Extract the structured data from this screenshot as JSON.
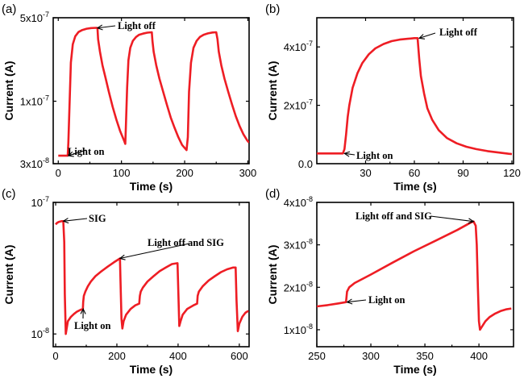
{
  "chart_data": [
    {
      "type": "line",
      "panel_label": "(a)",
      "xlabel": "Time (s)",
      "ylabel": "Current (A)",
      "xlim": [
        -8,
        302
      ],
      "ylim": [
        3e-08,
        5e-07
      ],
      "yscale": "log",
      "xticks": [
        {
          "v": 0,
          "label": "0"
        },
        {
          "v": 100,
          "label": "100"
        },
        {
          "v": 200,
          "label": "200"
        },
        {
          "v": 300,
          "label": "300"
        }
      ],
      "yticks": [
        {
          "v": 3e-08,
          "label": "3x10",
          "exp": "-8"
        },
        {
          "v": 1e-07,
          "label": "1x10",
          "exp": "-7"
        },
        {
          "v": 5e-07,
          "label": "5x10",
          "exp": "-7"
        }
      ],
      "series": [
        {
          "color": "#ee1d24",
          "x": [
            0,
            15,
            16,
            18,
            20,
            23,
            27,
            32,
            38,
            45,
            52,
            60,
            62,
            63,
            66,
            70,
            75,
            80,
            86,
            92,
            98,
            104,
            106,
            107,
            109,
            111,
            114,
            118,
            123,
            128,
            134,
            141,
            148,
            149,
            151,
            155,
            160,
            166,
            172,
            178,
            184,
            190,
            196,
            203,
            205,
            207,
            210,
            214,
            219,
            224,
            230,
            237,
            244,
            250,
            252,
            254,
            258,
            263,
            269,
            275,
            281,
            287,
            293,
            299,
            302
          ],
          "y": [
            3.5e-08,
            3.5e-08,
            4.5e-08,
            1e-07,
            2.1e-07,
            3e-07,
            3.5e-07,
            3.8e-07,
            3.95e-07,
            4.05e-07,
            4.1e-07,
            4.12e-07,
            4.1e-07,
            3.3e-07,
            2.6e-07,
            2e-07,
            1.55e-07,
            1.2e-07,
            9e-08,
            7e-08,
            5.6e-08,
            4.7e-08,
            4.4e-08,
            6e-08,
            1.3e-07,
            2.2e-07,
            2.8e-07,
            3.2e-07,
            3.45e-07,
            3.6e-07,
            3.68e-07,
            3.75e-07,
            3.78e-07,
            3.2e-07,
            2.6e-07,
            2e-07,
            1.55e-07,
            1.2e-07,
            9.3e-08,
            7.3e-08,
            6e-08,
            5e-08,
            4.3e-08,
            3.9e-08,
            5e-08,
            1.2e-07,
            2.1e-07,
            2.8e-07,
            3.2e-07,
            3.45e-07,
            3.6e-07,
            3.7e-07,
            3.76e-07,
            3.78e-07,
            3.3e-07,
            2.6e-07,
            2e-07,
            1.55e-07,
            1.2e-07,
            9.4e-08,
            7.5e-08,
            6.2e-08,
            5.3e-08,
            4.7e-08,
            4.5e-08
          ]
        }
      ],
      "annotations": [
        {
          "text": "Light off",
          "x": 62,
          "y": 4.1e-07
        },
        {
          "text": "Light on",
          "x": 16,
          "y": 3.5e-08
        }
      ]
    },
    {
      "type": "line",
      "panel_label": "(b)",
      "xlabel": "Time (s)",
      "ylabel": "Current (A)",
      "xlim": [
        0,
        121
      ],
      "ylim": [
        0,
        5e-07
      ],
      "yscale": "linear",
      "xticks": [
        {
          "v": 30,
          "label": "30"
        },
        {
          "v": 60,
          "label": "60"
        },
        {
          "v": 90,
          "label": "90"
        },
        {
          "v": 120,
          "label": "120"
        }
      ],
      "yticks": [
        {
          "v": 0,
          "label": "0.0",
          "exp": ""
        },
        {
          "v": 2e-07,
          "label": "2x10",
          "exp": "-7"
        },
        {
          "v": 4e-07,
          "label": "4x10",
          "exp": "-7"
        }
      ],
      "series": [
        {
          "color": "#ee1d24",
          "x": [
            0,
            16,
            17,
            18,
            19,
            20,
            22,
            25,
            28,
            32,
            36,
            41,
            46,
            51,
            56,
            60,
            62,
            63,
            64,
            66,
            68,
            71,
            75,
            80,
            86,
            92,
            98,
            105,
            112,
            118,
            120
          ],
          "y": [
            3.5e-08,
            3.5e-08,
            5e-08,
            1e-07,
            1.6e-07,
            2e-07,
            2.6e-07,
            3.1e-07,
            3.45e-07,
            3.75e-07,
            3.95e-07,
            4.1e-07,
            4.2e-07,
            4.25e-07,
            4.28e-07,
            4.3e-07,
            4.3e-07,
            3.6e-07,
            3e-07,
            2.4e-07,
            1.9e-07,
            1.5e-07,
            1.15e-07,
            8.8e-08,
            7e-08,
            5.8e-08,
            5e-08,
            4.3e-08,
            3.8e-08,
            3.4e-08,
            3.3e-08
          ]
        }
      ],
      "annotations": [
        {
          "text": "Light off",
          "x": 63,
          "y": 4.3e-07
        },
        {
          "text": "Light on",
          "x": 17,
          "y": 3.5e-08
        }
      ]
    },
    {
      "type": "line",
      "panel_label": "(c)",
      "xlabel": "Time (s)",
      "ylabel": "Current (A)",
      "xlim": [
        -8,
        632
      ],
      "ylim": [
        8e-09,
        1e-07
      ],
      "yscale": "log",
      "xticks": [
        {
          "v": 0,
          "label": "0"
        },
        {
          "v": 200,
          "label": "200"
        },
        {
          "v": 400,
          "label": "400"
        },
        {
          "v": 600,
          "label": "600"
        }
      ],
      "yticks": [
        {
          "v": 1e-08,
          "label": "10",
          "exp": "-8"
        },
        {
          "v": 1e-07,
          "label": "10",
          "exp": "-7"
        }
      ],
      "series": [
        {
          "color": "#ee1d24",
          "x": [
            0,
            5,
            10,
            20,
            25,
            28,
            30,
            33,
            36,
            40,
            50,
            60,
            70,
            80,
            89,
            90,
            92,
            97,
            105,
            115,
            130,
            150,
            170,
            190,
            210,
            212,
            215,
            218,
            222,
            230,
            245,
            260,
            273,
            275,
            278,
            285,
            300,
            320,
            340,
            360,
            380,
            398,
            401,
            404,
            408,
            415,
            430,
            450,
            462,
            464,
            468,
            480,
            500,
            520,
            540,
            560,
            580,
            588,
            591,
            595,
            600,
            610,
            620,
            630
          ],
          "y": [
            6.8e-08,
            7e-08,
            7.1e-08,
            7.2e-08,
            7.2e-08,
            5e-08,
            2e-08,
            1e-08,
            1.1e-08,
            1.25e-08,
            1.35e-08,
            1.42e-08,
            1.48e-08,
            1.52e-08,
            1.55e-08,
            1.75e-08,
            1.95e-08,
            2.1e-08,
            2.3e-08,
            2.5e-08,
            2.75e-08,
            3e-08,
            3.25e-08,
            3.5e-08,
            3.75e-08,
            2.5e-08,
            1.3e-08,
            1.1e-08,
            1.25e-08,
            1.4e-08,
            1.55e-08,
            1.65e-08,
            1.7e-08,
            1.95e-08,
            2.1e-08,
            2.25e-08,
            2.5e-08,
            2.75e-08,
            3e-08,
            3.2e-08,
            3.4e-08,
            3.45e-08,
            2e-08,
            1.15e-08,
            1.25e-08,
            1.4e-08,
            1.55e-08,
            1.65e-08,
            1.7e-08,
            1.95e-08,
            2.1e-08,
            2.3e-08,
            2.55e-08,
            2.75e-08,
            2.95e-08,
            3.1e-08,
            3.2e-08,
            3.2e-08,
            1.8e-08,
            1.05e-08,
            1.2e-08,
            1.35e-08,
            1.45e-08,
            1.5e-08
          ]
        }
      ],
      "annotations": [
        {
          "text": "SIG",
          "x": 25,
          "y": 7.2e-08
        },
        {
          "text": "Light off and SIG",
          "x": 210,
          "y": 3.75e-08
        },
        {
          "text": "Light on",
          "x": 90,
          "y": 1.55e-08
        }
      ]
    },
    {
      "type": "line",
      "panel_label": "(d)",
      "xlabel": "Time (s)",
      "ylabel": "Current (A)",
      "xlim": [
        250,
        432
      ],
      "ylim": [
        6e-09,
        4e-08
      ],
      "yscale": "linear",
      "xticks": [
        {
          "v": 250,
          "label": "250"
        },
        {
          "v": 300,
          "label": "300"
        },
        {
          "v": 350,
          "label": "350"
        },
        {
          "v": 400,
          "label": "400"
        }
      ],
      "yticks": [
        {
          "v": 1e-08,
          "label": "1x10",
          "exp": "-8"
        },
        {
          "v": 2e-08,
          "label": "2x10",
          "exp": "-8"
        },
        {
          "v": 3e-08,
          "label": "3x10",
          "exp": "-8"
        },
        {
          "v": 4e-08,
          "label": "4x10",
          "exp": "-8"
        }
      ],
      "series": [
        {
          "color": "#ee1d24",
          "x": [
            250,
            260,
            270,
            277,
            278,
            280,
            285,
            300,
            320,
            340,
            360,
            380,
            392,
            395,
            397,
            398,
            399,
            400,
            401,
            403,
            406,
            410,
            415,
            420,
            425,
            430
          ],
          "y": [
            1.55e-08,
            1.58e-08,
            1.62e-08,
            1.65e-08,
            1.9e-08,
            2e-08,
            2.1e-08,
            2.3e-08,
            2.58e-08,
            2.85e-08,
            3.1e-08,
            3.35e-08,
            3.52e-08,
            3.55e-08,
            3.45e-08,
            3e-08,
            2e-08,
            1.2e-08,
            1e-08,
            1.08e-08,
            1.2e-08,
            1.3e-08,
            1.38e-08,
            1.44e-08,
            1.48e-08,
            1.5e-08
          ]
        }
      ],
      "annotations": [
        {
          "text": "Light off and SIG",
          "x": 395,
          "y": 3.55e-08
        },
        {
          "text": "Light on",
          "x": 278,
          "y": 1.65e-08
        }
      ]
    }
  ]
}
